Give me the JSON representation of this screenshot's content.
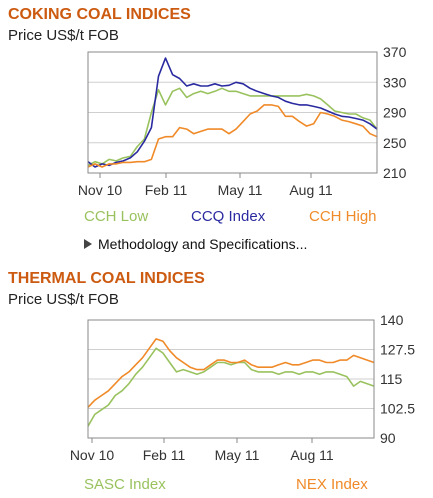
{
  "coking": {
    "title": "COKING COAL INDICES",
    "subtitle": "Price US$/t FOB",
    "methodology_link": "Methodology and Specifications...",
    "chart_data": {
      "type": "line",
      "x_ticks": [
        "Nov 10",
        "Feb 11",
        "May 11",
        "Aug 11"
      ],
      "y_ticks": [
        370,
        330,
        290,
        250,
        210
      ],
      "ylim": [
        210,
        370
      ],
      "grid": true,
      "legend_position": "bottom",
      "series": [
        {
          "name": "CCH Low",
          "color": "#99c25e",
          "values": [
            220,
            225,
            222,
            228,
            226,
            230,
            232,
            245,
            255,
            290,
            320,
            300,
            318,
            322,
            310,
            315,
            318,
            315,
            318,
            322,
            318,
            318,
            315,
            312,
            312,
            312,
            312,
            312,
            312,
            312,
            312,
            314,
            312,
            308,
            300,
            292,
            290,
            288,
            288,
            283,
            280,
            268
          ]
        },
        {
          "name": "CCQ Index",
          "color": "#2a2aa0",
          "values": [
            225,
            218,
            222,
            220,
            224,
            226,
            230,
            238,
            252,
            270,
            338,
            362,
            340,
            335,
            325,
            328,
            325,
            325,
            328,
            325,
            326,
            330,
            328,
            322,
            318,
            315,
            312,
            310,
            305,
            302,
            300,
            300,
            298,
            296,
            292,
            288,
            285,
            284,
            282,
            280,
            275,
            268
          ]
        },
        {
          "name": "CCH High",
          "color": "#f08a28",
          "values": [
            218,
            222,
            218,
            222,
            222,
            224,
            224,
            225,
            225,
            228,
            255,
            258,
            258,
            270,
            268,
            262,
            265,
            268,
            268,
            268,
            262,
            268,
            278,
            288,
            292,
            300,
            300,
            298,
            285,
            285,
            278,
            272,
            275,
            290,
            288,
            285,
            280,
            278,
            275,
            272,
            262,
            258
          ]
        }
      ]
    }
  },
  "thermal": {
    "title": "THERMAL COAL INDICES",
    "subtitle": "Price US$/t FOB",
    "chart_data": {
      "type": "line",
      "x_ticks": [
        "Nov 10",
        "Feb 11",
        "May 11",
        "Aug 11"
      ],
      "y_ticks": [
        140,
        127.5,
        115,
        102.5,
        90
      ],
      "ylim": [
        90,
        140
      ],
      "grid": true,
      "legend_position": "bottom",
      "series": [
        {
          "name": "SASC Index",
          "color": "#99c25e",
          "values": [
            95,
            100,
            102,
            104,
            108,
            110,
            113,
            117,
            120,
            124,
            128,
            126,
            122,
            118,
            119,
            118,
            117,
            118,
            120,
            122,
            122,
            121,
            122,
            122,
            119,
            118,
            118,
            118,
            117,
            118,
            118,
            117,
            118,
            118,
            117,
            118,
            118,
            117,
            116,
            112,
            114,
            113,
            112
          ]
        },
        {
          "name": "NEX Index",
          "color": "#f08a28",
          "values": [
            103,
            106,
            108,
            110,
            113,
            116,
            118,
            121,
            124,
            128,
            132,
            131,
            127,
            124,
            122,
            120,
            119,
            119,
            121,
            123,
            123,
            122,
            122,
            123,
            121,
            120,
            120,
            120,
            121,
            122,
            121,
            121,
            122,
            123,
            123,
            122,
            122,
            123,
            123,
            125,
            124,
            123,
            122
          ]
        }
      ]
    }
  }
}
